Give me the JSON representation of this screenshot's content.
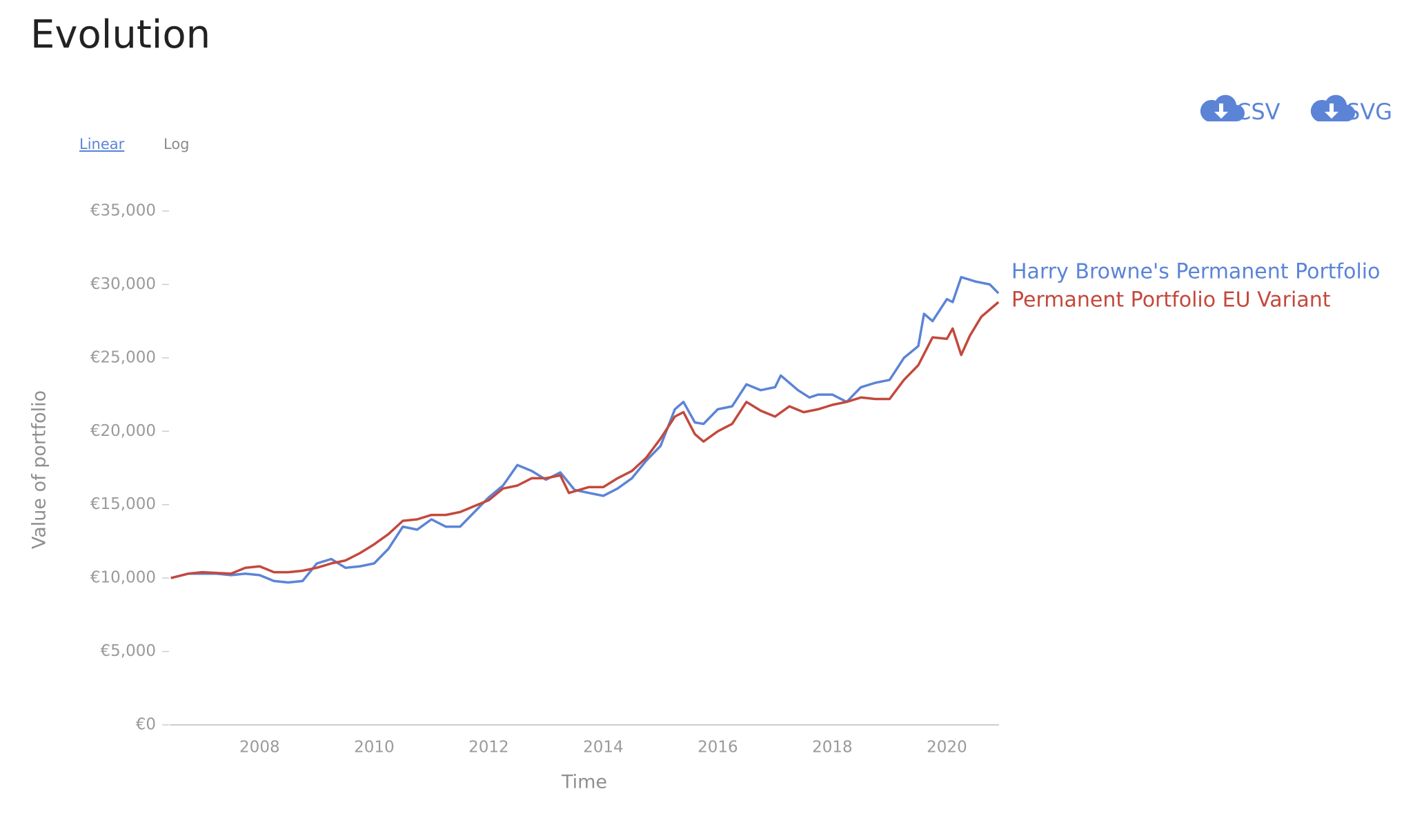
{
  "chart_data": {
    "type": "line",
    "title": "Evolution",
    "scale_options": [
      "Linear",
      "Log"
    ],
    "downloads": [
      "CSV",
      "SVG"
    ],
    "log_scale": false,
    "x_label": "Time",
    "y_label": "Value of portfolio",
    "xlim": [
      2006.43,
      2020.91
    ],
    "xticks": [
      2008,
      2010,
      2012,
      2014,
      2016,
      2018,
      2020
    ],
    "ylim": [
      0,
      35000
    ],
    "yticks": [
      {
        "value": 0,
        "label": "€0"
      },
      {
        "value": 5000,
        "label": "€5,000"
      },
      {
        "value": 10000,
        "label": "€10,000"
      },
      {
        "value": 15000,
        "label": "€15,000"
      },
      {
        "value": 20000,
        "label": "€20,000"
      },
      {
        "value": 25000,
        "label": "€25,000"
      },
      {
        "value": 30000,
        "label": "€30,000"
      },
      {
        "value": 35000,
        "label": "€35,000"
      }
    ],
    "series": [
      {
        "name": "Harry Browne's Permanent Portfolio",
        "color": "#5b84d6",
        "x": [
          2006.45,
          2006.75,
          2007.0,
          2007.25,
          2007.5,
          2007.75,
          2008.0,
          2008.25,
          2008.5,
          2008.75,
          2009.0,
          2009.25,
          2009.5,
          2009.75,
          2010.0,
          2010.25,
          2010.5,
          2010.75,
          2011.0,
          2011.25,
          2011.5,
          2011.75,
          2012.0,
          2012.25,
          2012.5,
          2012.75,
          2013.0,
          2013.25,
          2013.5,
          2013.75,
          2014.0,
          2014.25,
          2014.5,
          2014.75,
          2015.0,
          2015.25,
          2015.4,
          2015.6,
          2015.75,
          2016.0,
          2016.25,
          2016.5,
          2016.75,
          2017.0,
          2017.1,
          2017.4,
          2017.6,
          2017.75,
          2018.0,
          2018.25,
          2018.5,
          2018.75,
          2019.0,
          2019.25,
          2019.5,
          2019.6,
          2019.75,
          2020.0,
          2020.1,
          2020.25,
          2020.5,
          2020.75,
          2020.9
        ],
        "values": [
          10000,
          10300,
          10300,
          10300,
          10200,
          10300,
          10200,
          9800,
          9700,
          9800,
          11000,
          11300,
          10700,
          10800,
          11000,
          12000,
          13500,
          13300,
          14000,
          13500,
          13500,
          14500,
          15500,
          16300,
          17700,
          17300,
          16700,
          17200,
          16000,
          15800,
          15600,
          16100,
          16800,
          18000,
          19000,
          21500,
          22000,
          20600,
          20500,
          21500,
          21700,
          23200,
          22800,
          23000,
          23800,
          22800,
          22300,
          22500,
          22500,
          22000,
          23000,
          23300,
          23500,
          25000,
          25800,
          28000,
          27500,
          29000,
          28800,
          30500,
          30200,
          30000,
          29400
        ]
      },
      {
        "name": "Permanent Portfolio EU Variant",
        "color": "#c4483c",
        "x": [
          2006.45,
          2006.75,
          2007.0,
          2007.5,
          2007.75,
          2008.0,
          2008.25,
          2008.5,
          2008.75,
          2009.0,
          2009.25,
          2009.5,
          2009.75,
          2010.0,
          2010.25,
          2010.5,
          2010.75,
          2011.0,
          2011.25,
          2011.5,
          2011.75,
          2012.0,
          2012.25,
          2012.5,
          2012.75,
          2013.0,
          2013.25,
          2013.4,
          2013.75,
          2014.0,
          2014.25,
          2014.5,
          2014.75,
          2015.0,
          2015.25,
          2015.4,
          2015.6,
          2015.75,
          2016.0,
          2016.25,
          2016.5,
          2016.75,
          2017.0,
          2017.25,
          2017.5,
          2017.75,
          2018.0,
          2018.25,
          2018.5,
          2018.75,
          2019.0,
          2019.25,
          2019.5,
          2019.75,
          2020.0,
          2020.1,
          2020.25,
          2020.4,
          2020.6,
          2020.9
        ],
        "values": [
          10000,
          10300,
          10400,
          10300,
          10700,
          10800,
          10400,
          10400,
          10500,
          10700,
          11000,
          11200,
          11700,
          12300,
          13000,
          13900,
          14000,
          14300,
          14300,
          14500,
          14900,
          15300,
          16100,
          16300,
          16800,
          16800,
          17000,
          15800,
          16200,
          16200,
          16800,
          17300,
          18200,
          19500,
          21000,
          21300,
          19800,
          19300,
          20000,
          20500,
          22000,
          21400,
          21000,
          21700,
          21300,
          21500,
          21800,
          22000,
          22300,
          22200,
          22200,
          23500,
          24500,
          26400,
          26300,
          27000,
          25200,
          26500,
          27800,
          28800
        ]
      }
    ]
  }
}
